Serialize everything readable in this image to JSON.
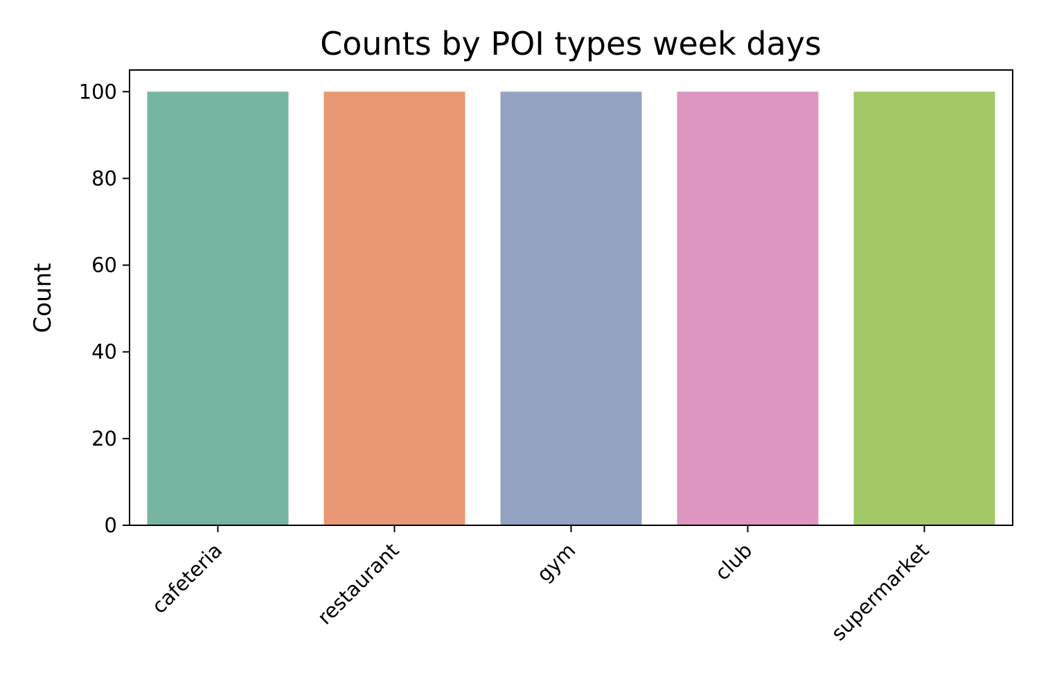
{
  "chart_data": {
    "type": "bar",
    "title": "Counts by POI types week days",
    "xlabel": "",
    "ylabel": "Count",
    "categories": [
      "cafeteria",
      "restaurant",
      "gym",
      "club",
      "supermarket"
    ],
    "values": [
      100,
      100,
      100,
      100,
      100
    ],
    "colors": [
      "#76b5a1",
      "#e99876",
      "#95a3c2",
      "#dc96bf",
      "#a2c868"
    ],
    "ylim": [
      0,
      105
    ],
    "yticks": [
      0,
      20,
      40,
      60,
      80,
      100
    ],
    "grid": false,
    "legend": "none"
  }
}
